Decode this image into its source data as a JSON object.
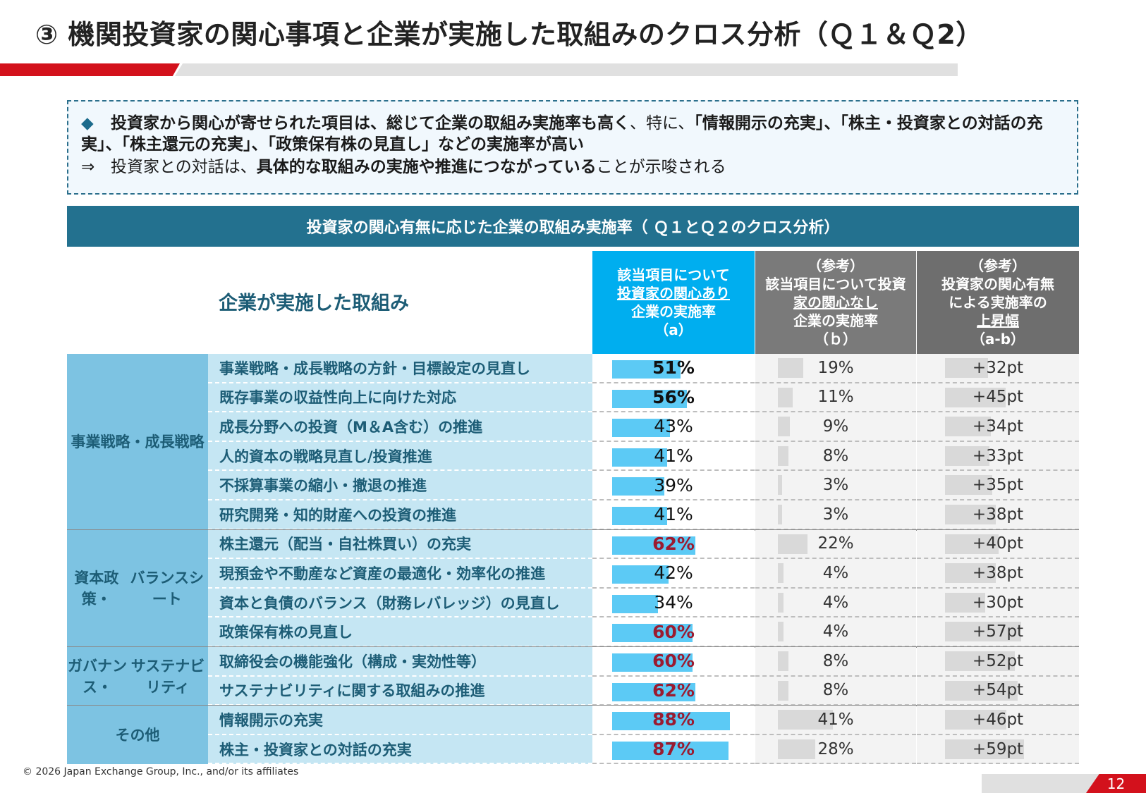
{
  "title": "③ 機関投資家の関心事項と企業が実施した取組みのクロス分析（Ｑ１＆Ｑ2）",
  "summary": {
    "bullet_icon": "◆",
    "line1_bold": "投資家から関心が寄せられた項目は、総じて企業の取組み実施率も高く",
    "line1_normal": "、特に、",
    "line1_bold2": "「情報開示の充実」、「株主・投資家との対話の充実」、「株主還元の充実」、「政策保有株の見直し」などの実施率が高い",
    "arrow": "⇒",
    "line2_pre": "投資家との対話は、",
    "line2_bold": "具体的な取組みの実施や推進につながっている",
    "line2_post": "ことが示唆される"
  },
  "chart_data": {
    "type": "table",
    "title": "投資家の関心有無に応じた企業の取組み実施率（ Ｑ１とＱ２のクロス分析）",
    "main_column_label": "企業が実施した取組み",
    "columns": {
      "a": [
        "該当項目について",
        "投資家の関心あり",
        "企業の実施率",
        "（a）"
      ],
      "b": [
        "（参考）",
        "該当項目について投資",
        "家の関心なし",
        "企業の実施率",
        "（ｂ）"
      ],
      "c": [
        "（参考）",
        "投資家の関心有無",
        "による実施率の",
        "上昇幅",
        "（a-b）"
      ]
    },
    "groups": [
      {
        "name": "事業戦略・\n成長戦略",
        "rows": [
          {
            "label": "事業戦略・成長戦略の方針・目標設定の見直し",
            "a": 51,
            "b": 19,
            "diff": 32,
            "a_text": "51%",
            "b_text": "19%",
            "diff_text": "+32pt",
            "style": "bold"
          },
          {
            "label": "既存事業の収益性向上に向けた対応",
            "a": 56,
            "b": 11,
            "diff": 45,
            "a_text": "56%",
            "b_text": "11%",
            "diff_text": "+45pt",
            "style": "bold"
          },
          {
            "label": "成長分野への投資（M＆A含む）の推進",
            "a": 43,
            "b": 9,
            "diff": 34,
            "a_text": "43%",
            "b_text": "9%",
            "diff_text": "+34pt",
            "style": "light"
          },
          {
            "label": "人的資本の戦略見直し/投資推進",
            "a": 41,
            "b": 8,
            "diff": 33,
            "a_text": "41%",
            "b_text": "8%",
            "diff_text": "+33pt",
            "style": "light"
          },
          {
            "label": "不採算事業の縮小・撤退の推進",
            "a": 39,
            "b": 3,
            "diff": 35,
            "a_text": "39%",
            "b_text": "3%",
            "diff_text": "+35pt",
            "style": "light"
          },
          {
            "label": "研究開発・知的財産への投資の推進",
            "a": 41,
            "b": 3,
            "diff": 38,
            "a_text": "41%",
            "b_text": "3%",
            "diff_text": "+38pt",
            "style": "light"
          }
        ]
      },
      {
        "name": "資本政策・\nバランスシート",
        "rows": [
          {
            "label": "株主還元（配当・自社株買い）の充実",
            "a": 62,
            "b": 22,
            "diff": 40,
            "a_text": "62%",
            "b_text": "22%",
            "diff_text": "+40pt",
            "style": "hi"
          },
          {
            "label": "現預金や不動産など資産の最適化・効率化の推進",
            "a": 42,
            "b": 4,
            "diff": 38,
            "a_text": "42%",
            "b_text": "4%",
            "diff_text": "+38pt",
            "style": "light"
          },
          {
            "label": "資本と負債のバランス（財務レバレッジ）の見直し",
            "a": 34,
            "b": 4,
            "diff": 30,
            "a_text": "34%",
            "b_text": "4%",
            "diff_text": "+30pt",
            "style": "light"
          },
          {
            "label": "政策保有株の見直し",
            "a": 60,
            "b": 4,
            "diff": 57,
            "a_text": "60%",
            "b_text": "4%",
            "diff_text": "+57pt",
            "style": "hi"
          }
        ]
      },
      {
        "name": "ガバナンス・\nサステナビリティ",
        "rows": [
          {
            "label": "取締役会の機能強化（構成・実効性等）",
            "a": 60,
            "b": 8,
            "diff": 52,
            "a_text": "60%",
            "b_text": "8%",
            "diff_text": "+52pt",
            "style": "hi"
          },
          {
            "label": "サステナビリティに関する取組みの推進",
            "a": 62,
            "b": 8,
            "diff": 54,
            "a_text": "62%",
            "b_text": "8%",
            "diff_text": "+54pt",
            "style": "hi"
          }
        ]
      },
      {
        "name": "その他",
        "rows": [
          {
            "label": "情報開示の充実",
            "a": 88,
            "b": 41,
            "diff": 46,
            "a_text": "88%",
            "b_text": "41%",
            "diff_text": "+46pt",
            "style": "hi"
          },
          {
            "label": "株主・投資家との対話の充実",
            "a": 87,
            "b": 28,
            "diff": 59,
            "a_text": "87%",
            "b_text": "28%",
            "diff_text": "+59pt",
            "style": "hi"
          }
        ]
      }
    ],
    "colors": {
      "a_bar": "#5ccaf5",
      "b_bar": "#d9d9d9",
      "c_bar": "#d9d9d9",
      "highlight": "#9b1b30",
      "header": "#23718f",
      "group_bg": "#7dc3e2",
      "label_bg": "#c5e6f3"
    }
  },
  "footer": {
    "copyright": "© 2026 Japan Exchange Group, Inc., and/or its affiliates",
    "page_number": "12"
  }
}
